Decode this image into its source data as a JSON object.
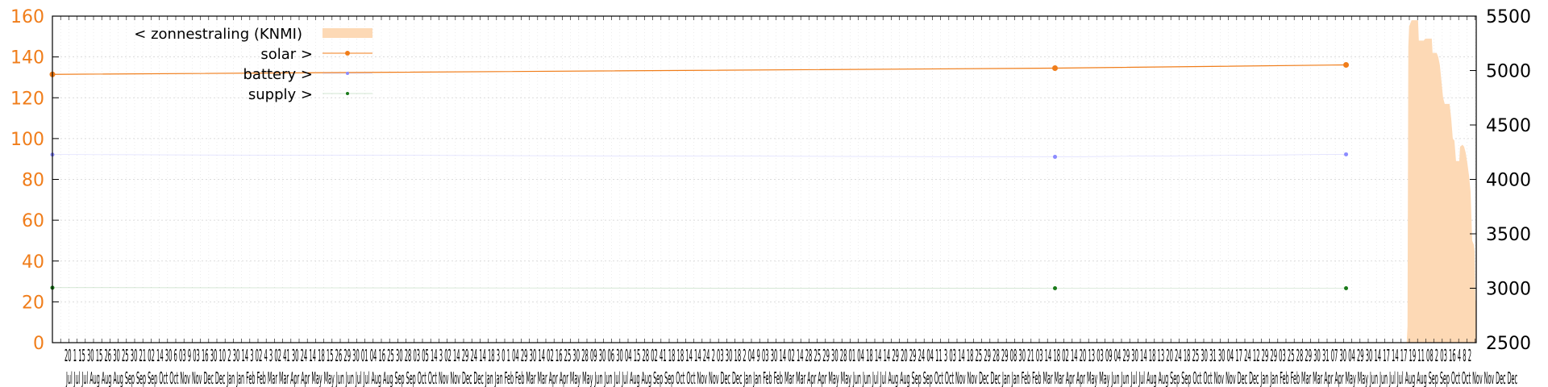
{
  "chart_data": {
    "type": "line",
    "xlim": [
      0,
      1761
    ],
    "ylim": [
      0,
      160
    ],
    "y2lim": [
      2500,
      5500
    ],
    "left_ticks": [
      0,
      20,
      40,
      60,
      80,
      100,
      120,
      140,
      160
    ],
    "right_ticks": [
      2500,
      3000,
      3500,
      4000,
      4500,
      5000,
      5500
    ],
    "colors": {
      "left_axis": "#f07d1a",
      "solar": "#f07d1a",
      "battery": "#8c8cff",
      "supply": "#1a7a1a",
      "sun": "#fdd9b5",
      "grid": "#d0d0d0"
    },
    "grid": true,
    "legend": {
      "position": "top-left",
      "entries": [
        {
          "key": "zonnestraling",
          "label": "< zonnestraling (KNMI)"
        },
        {
          "key": "solar",
          "label": "solar >"
        },
        {
          "key": "battery",
          "label": "battery >"
        },
        {
          "key": "supply",
          "label": "supply >"
        }
      ]
    },
    "series": [
      {
        "key": "solar",
        "axis": "right",
        "points": [
          [
            0,
            4965
          ],
          [
            1240,
            5022
          ],
          [
            1600,
            5052
          ]
        ]
      },
      {
        "key": "battery",
        "axis": "right",
        "points": [
          [
            0,
            4228
          ],
          [
            1240,
            4207
          ],
          [
            1600,
            4230
          ]
        ]
      },
      {
        "key": "supply",
        "axis": "right",
        "points": [
          [
            0,
            3005
          ],
          [
            1240,
            3000
          ],
          [
            1600,
            3000
          ]
        ]
      },
      {
        "key": "zonnestraling",
        "axis": "left",
        "kind": "area",
        "points": [
          [
            1675,
            0
          ],
          [
            1676,
            8
          ],
          [
            1677,
            145
          ],
          [
            1678,
            155
          ],
          [
            1681,
            158
          ],
          [
            1689,
            158
          ],
          [
            1690,
            148
          ],
          [
            1696,
            148
          ],
          [
            1698,
            149
          ],
          [
            1706,
            149
          ],
          [
            1707,
            142
          ],
          [
            1712,
            142
          ],
          [
            1714,
            140
          ],
          [
            1716,
            136
          ],
          [
            1718,
            128
          ],
          [
            1720,
            120
          ],
          [
            1722,
            117
          ],
          [
            1728,
            117
          ],
          [
            1730,
            110
          ],
          [
            1732,
            100
          ],
          [
            1734,
            99
          ],
          [
            1736,
            89
          ],
          [
            1740,
            89
          ],
          [
            1741,
            96
          ],
          [
            1744,
            97
          ],
          [
            1746,
            96
          ],
          [
            1748,
            93
          ],
          [
            1750,
            88
          ],
          [
            1752,
            82
          ],
          [
            1754,
            74
          ],
          [
            1756,
            50
          ],
          [
            1758,
            48
          ],
          [
            1759,
            45
          ],
          [
            1760,
            21
          ],
          [
            1761,
            20
          ],
          [
            1761,
            0
          ]
        ]
      }
    ],
    "x_tick_row1": "20 1 15 30 15 26 30 25 30 21 02 14 30 6 03 9 03 16 30 10 2 30 14 3 02 4 3 02 41 30 24 14 18 15 26 29 30 01 04 16 25 30 28 03 05 14 3 02 14 29 24 14 18 3 0 1 04 29 30 14 02 16 25 30 28 09 30 06 30 04 15 28 02 41 18 18 14 14 24 2 03 30 18 2 04 9 03 30 14 02 14 28 25 29 30 28 01 04 18 14 14 29 20 29 24 04 11 3 03 14 18 25 29 28 29 08 30 21 03 14 18 02 14 20 13 03 09 04 29 30 14 18 13 20 24 18 25 30 31 30 04 17 24 12 29 29 03 25 28 29 30 31 07 30 04 29 30 14 17 14 17 19 11 08 2 03 16 4 8 2",
    "x_tick_row2": "Jul Jul Jul Aug Aug Aug Sep Sep Sep Oct Oct Nov Nov Dec Dec Jan Jan Feb Feb Mar Mar Apr Apr May May Jun Jun Jul Jul Aug Aug Sep Sep Oct Oct Nov Nov Dec Dec Jan Jan Feb Feb Mar Mar Apr Apr May May Jun Jun Jul Jul Aug Aug Sep Sep Oct Oct Nov Nov Dec Dec Jan Jan Feb Feb Mar Mar Apr Apr May May Jun Jun Jul Jul Aug Aug Sep Sep Oct Oct Nov Nov Dec Dec Jan Jan Feb Feb Mar Mar Apr Apr May May Jun Jun Jul Jul Aug Aug Sep Sep Oct Oct Nov Nov Dec Dec Jan Jan Feb Feb Mar Mar Apr Apr May May Jun Jun Jul Jul Aug Aug Sep Sep Oct Oct Nov Nov Dec Dec"
  }
}
